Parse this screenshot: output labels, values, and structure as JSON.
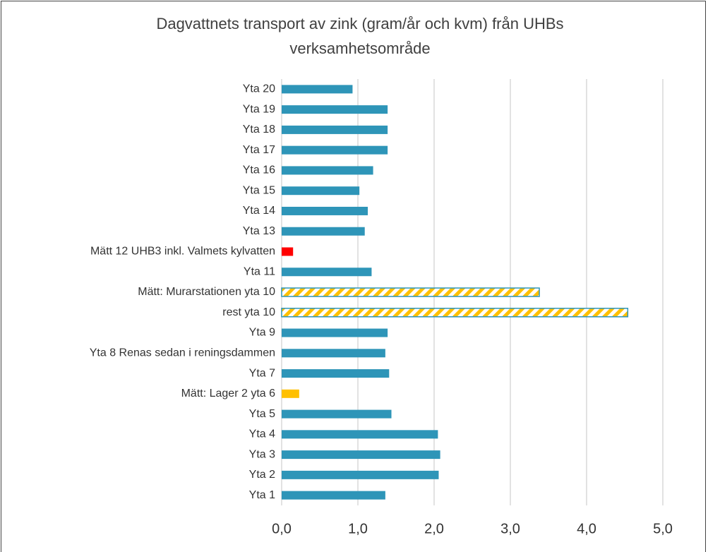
{
  "chart_data": {
    "type": "bar",
    "orientation": "horizontal",
    "title": "Dagvattnets transport av zink (gram/år och kvm) från UHBs verksamhetsområde",
    "categories": [
      "Yta 20",
      "Yta 19",
      "Yta 18",
      "Yta 17",
      "Yta 16",
      "Yta 15",
      "Yta 14",
      "Yta 13",
      "Mätt 12 UHB3 inkl. Valmets kylvatten",
      "Yta 11",
      "Mätt:  Murarstationen  yta 10",
      "rest yta 10",
      "Yta 9",
      "Yta 8 Renas sedan i reningsdammen",
      "Yta 7",
      "Mätt: Lager 2 yta 6",
      "Yta 5",
      "Yta 4",
      "Yta 3",
      "Yta 2",
      "Yta 1"
    ],
    "values": [
      0.93,
      1.39,
      1.39,
      1.39,
      1.2,
      1.02,
      1.13,
      1.09,
      0.15,
      1.18,
      3.38,
      4.54,
      1.39,
      1.36,
      1.41,
      0.23,
      1.44,
      2.05,
      2.08,
      2.06,
      1.36
    ],
    "colors": [
      "#2e95b8",
      "#2e95b8",
      "#2e95b8",
      "#2e95b8",
      "#2e95b8",
      "#2e95b8",
      "#2e95b8",
      "#2e95b8",
      "#ff0000",
      "#2e95b8",
      "#ffc000",
      "#ffc000",
      "#2e95b8",
      "#2e95b8",
      "#2e95b8",
      "#ffc000",
      "#2e95b8",
      "#2e95b8",
      "#2e95b8",
      "#2e95b8",
      "#2e95b8"
    ],
    "hatch": [
      false,
      false,
      false,
      false,
      false,
      false,
      false,
      false,
      false,
      false,
      true,
      true,
      false,
      false,
      false,
      false,
      false,
      false,
      false,
      false,
      false
    ],
    "xlim": [
      0,
      5
    ],
    "xticks": [
      {
        "value": 0,
        "label": "0,0"
      },
      {
        "value": 1,
        "label": "1,0"
      },
      {
        "value": 2,
        "label": "2,0"
      },
      {
        "value": 3,
        "label": "3,0"
      },
      {
        "value": 4,
        "label": "4,0"
      },
      {
        "value": 5,
        "label": "5,0"
      }
    ],
    "grid": true
  }
}
